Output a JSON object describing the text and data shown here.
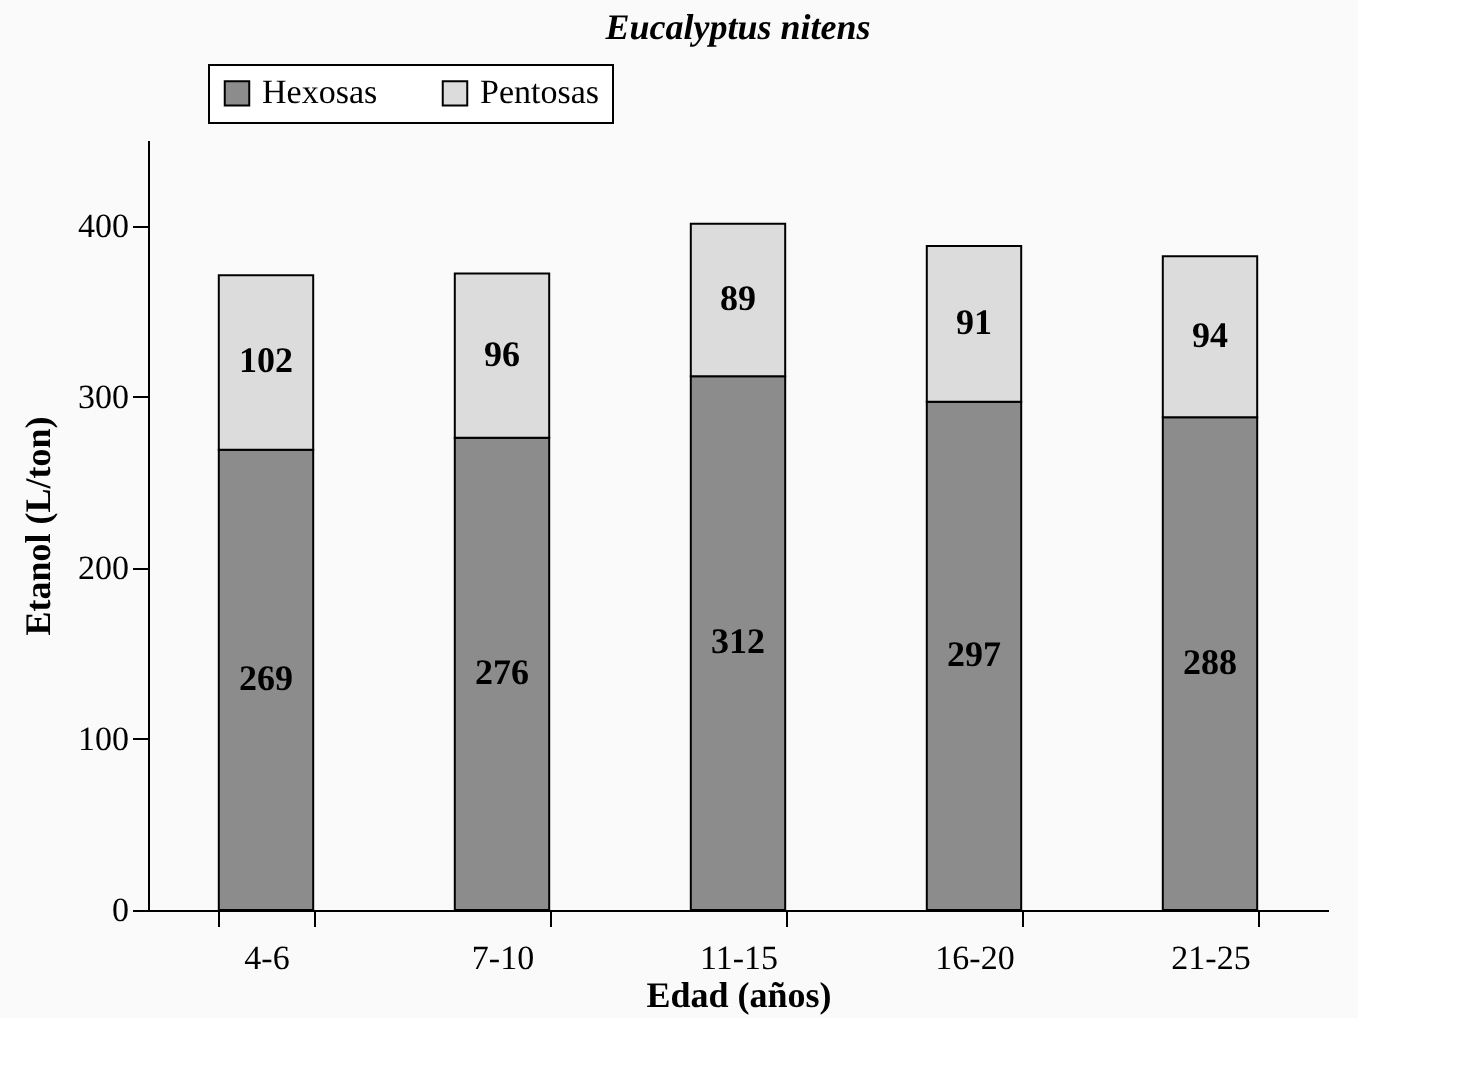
{
  "chart_data": {
    "type": "bar",
    "title": "Eucalyptus nitens",
    "xlabel": "Edad (años)",
    "ylabel": "Etanol (L/ton)",
    "categories": [
      "4-6",
      "7-10",
      "11-15",
      "16-20",
      "21-25"
    ],
    "series": [
      {
        "name": "Hexosas",
        "color": "#8c8c8c",
        "values": [
          269,
          276,
          312,
          297,
          288
        ]
      },
      {
        "name": "Pentosas",
        "color": "#dcdcdc",
        "values": [
          102,
          96,
          89,
          91,
          94
        ]
      }
    ],
    "stacked": true,
    "data_labels": true,
    "ylim": [
      0,
      450
    ],
    "yticks": [
      0,
      100,
      200,
      300,
      400
    ],
    "grid": false,
    "legend": "top left"
  }
}
